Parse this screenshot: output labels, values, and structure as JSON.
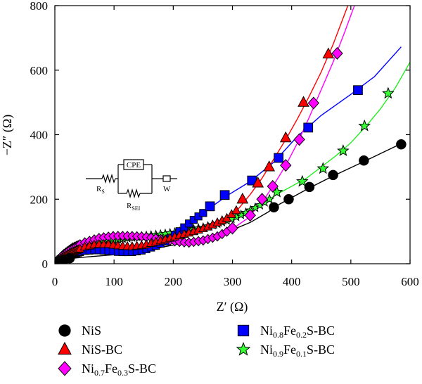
{
  "chart_data": {
    "type": "scatter",
    "title": "",
    "xlabel": "Z′ (Ω)",
    "ylabel": "−Z″ (Ω)",
    "xlim": [
      0,
      600
    ],
    "ylim": [
      0,
      800
    ],
    "xticks": [
      "0",
      "100",
      "200",
      "300",
      "400",
      "500",
      "600"
    ],
    "yticks": [
      "0",
      "200",
      "400",
      "600",
      "800"
    ],
    "x_tick_values": [
      0,
      100,
      200,
      300,
      400,
      500,
      600
    ],
    "y_tick_values": [
      0,
      200,
      400,
      600,
      800
    ],
    "grid": false,
    "legend_position": "bottom",
    "series": [
      {
        "name": "NiS",
        "marker": "circle",
        "color": "#000000",
        "points": [
          [
            2,
            3
          ],
          [
            8,
            9
          ],
          [
            16,
            13
          ],
          [
            25,
            17
          ],
          [
            370,
            175
          ],
          [
            395,
            200
          ],
          [
            430,
            238
          ],
          [
            470,
            275
          ],
          [
            522,
            320
          ],
          [
            585,
            370
          ]
        ],
        "fit": [
          [
            0,
            0
          ],
          [
            5,
            6
          ],
          [
            15,
            12
          ],
          [
            30,
            17
          ],
          [
            60,
            22
          ],
          [
            100,
            28
          ],
          [
            150,
            40
          ],
          [
            200,
            58
          ],
          [
            250,
            78
          ],
          [
            300,
            105
          ],
          [
            330,
            128
          ],
          [
            360,
            160
          ],
          [
            380,
            185
          ],
          [
            400,
            205
          ],
          [
            430,
            235
          ],
          [
            470,
            272
          ],
          [
            520,
            315
          ],
          [
            585,
            372
          ]
        ]
      },
      {
        "name": "NiS-BC",
        "marker": "triangle",
        "color": "#ff0000",
        "points": [
          [
            317,
            200
          ],
          [
            343,
            250
          ],
          [
            362,
            300
          ],
          [
            390,
            390
          ],
          [
            420,
            500
          ],
          [
            462,
            650
          ]
        ],
        "fit": [
          [
            0,
            0
          ],
          [
            5,
            10
          ],
          [
            15,
            22
          ],
          [
            30,
            36
          ],
          [
            50,
            52
          ],
          [
            70,
            60
          ],
          [
            90,
            60
          ],
          [
            110,
            55
          ],
          [
            130,
            53
          ],
          [
            150,
            57
          ],
          [
            170,
            67
          ],
          [
            200,
            82
          ],
          [
            230,
            97
          ],
          [
            260,
            115
          ],
          [
            290,
            140
          ],
          [
            310,
            170
          ],
          [
            330,
            215
          ],
          [
            350,
            265
          ],
          [
            370,
            325
          ],
          [
            390,
            385
          ],
          [
            410,
            450
          ],
          [
            430,
            520
          ],
          [
            450,
            595
          ],
          [
            470,
            680
          ],
          [
            495,
            800
          ]
        ]
      },
      {
        "name": "Ni0.7Fe0.3S-BC",
        "name_parts": [
          "Ni",
          "0.7",
          "Fe",
          "0.3",
          "S-BC"
        ],
        "marker": "diamond",
        "color": "#ff00ff",
        "points": [
          [
            300,
            110
          ],
          [
            330,
            150
          ],
          [
            350,
            200
          ],
          [
            368,
            240
          ],
          [
            390,
            305
          ],
          [
            413,
            385
          ],
          [
            437,
            498
          ],
          [
            477,
            652
          ]
        ],
        "fit": [
          [
            0,
            0
          ],
          [
            5,
            12
          ],
          [
            15,
            30
          ],
          [
            30,
            50
          ],
          [
            50,
            66
          ],
          [
            75,
            80
          ],
          [
            100,
            86
          ],
          [
            125,
            86
          ],
          [
            150,
            84
          ],
          [
            175,
            78
          ],
          [
            200,
            70
          ],
          [
            225,
            65
          ],
          [
            250,
            72
          ],
          [
            275,
            85
          ],
          [
            300,
            108
          ],
          [
            325,
            140
          ],
          [
            350,
            190
          ],
          [
            370,
            245
          ],
          [
            390,
            305
          ],
          [
            410,
            375
          ],
          [
            430,
            455
          ],
          [
            450,
            540
          ],
          [
            470,
            625
          ],
          [
            490,
            720
          ],
          [
            506,
            800
          ]
        ]
      },
      {
        "name": "Ni0.8Fe0.2S-BC",
        "name_parts": [
          "Ni",
          "0.8",
          "Fe",
          "0.2",
          "S-BC"
        ],
        "marker": "square",
        "color": "#0000ff",
        "points": [
          [
            262,
            178
          ],
          [
            287,
            213
          ],
          [
            333,
            258
          ],
          [
            378,
            328
          ],
          [
            428,
            422
          ],
          [
            512,
            538
          ]
        ],
        "fit": [
          [
            0,
            0
          ],
          [
            5,
            8
          ],
          [
            15,
            20
          ],
          [
            30,
            30
          ],
          [
            50,
            40
          ],
          [
            70,
            42
          ],
          [
            90,
            40
          ],
          [
            110,
            36
          ],
          [
            130,
            36
          ],
          [
            150,
            42
          ],
          [
            170,
            55
          ],
          [
            190,
            72
          ],
          [
            210,
            100
          ],
          [
            230,
            130
          ],
          [
            260,
            170
          ],
          [
            290,
            210
          ],
          [
            330,
            255
          ],
          [
            370,
            315
          ],
          [
            410,
            395
          ],
          [
            450,
            460
          ],
          [
            500,
            525
          ],
          [
            540,
            580
          ],
          [
            585,
            672
          ]
        ]
      },
      {
        "name": "Ni0.9Fe0.1S-BC",
        "name_parts": [
          "Ni",
          "0.9",
          "Fe",
          "0.1",
          "S-BC"
        ],
        "marker": "star",
        "color": "#33ff33",
        "points": [
          [
            375,
            222
          ],
          [
            418,
            255
          ],
          [
            453,
            295
          ],
          [
            487,
            350
          ],
          [
            523,
            427
          ],
          [
            563,
            528
          ]
        ],
        "fit": [
          [
            0,
            0
          ],
          [
            5,
            10
          ],
          [
            15,
            22
          ],
          [
            30,
            36
          ],
          [
            50,
            52
          ],
          [
            75,
            66
          ],
          [
            100,
            74
          ],
          [
            125,
            80
          ],
          [
            150,
            86
          ],
          [
            175,
            90
          ],
          [
            200,
            96
          ],
          [
            225,
            104
          ],
          [
            250,
            112
          ],
          [
            275,
            124
          ],
          [
            300,
            140
          ],
          [
            325,
            160
          ],
          [
            350,
            185
          ],
          [
            375,
            215
          ],
          [
            400,
            240
          ],
          [
            425,
            265
          ],
          [
            450,
            300
          ],
          [
            475,
            335
          ],
          [
            500,
            375
          ],
          [
            525,
            425
          ],
          [
            550,
            480
          ],
          [
            575,
            545
          ],
          [
            600,
            625
          ]
        ]
      }
    ],
    "inset_circuit": {
      "box_label": "CPE",
      "labels": [
        {
          "main": "R",
          "sub": "S"
        },
        {
          "main": "R",
          "sub": "SEI"
        },
        {
          "main": "W",
          "sub": ""
        }
      ]
    }
  }
}
